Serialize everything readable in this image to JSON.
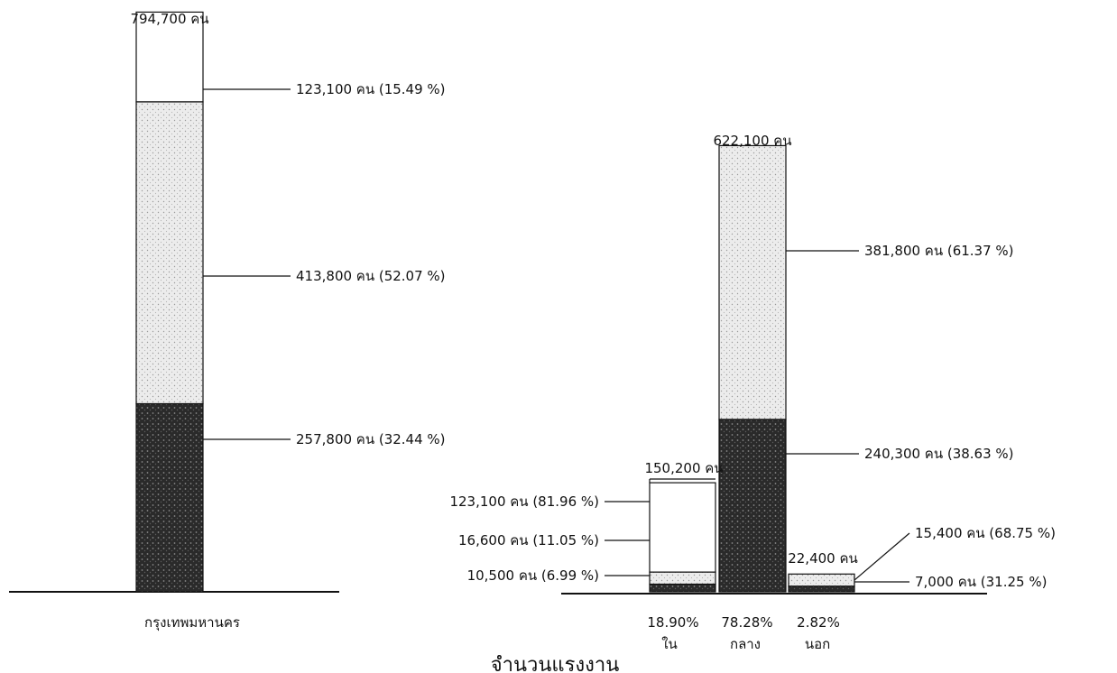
{
  "chart_data": {
    "type": "bar",
    "title": "จำนวนแรงงาน",
    "bars": [
      {
        "id": "bkk",
        "category": "กรุงเทพมหานคร",
        "total": 794700,
        "total_label": "794,700 คน",
        "segments": [
          {
            "value": 123100,
            "label": "123,100 คน (15.49 %)",
            "fill": "white"
          },
          {
            "value": 413800,
            "label": "413,800 คน (52.07 %)",
            "fill": "light"
          },
          {
            "value": 257800,
            "label": "257,800 คน (32.44 %)",
            "fill": "dark"
          }
        ]
      },
      {
        "id": "inner",
        "category": "ใน",
        "share": "18.90%",
        "total": 150200,
        "total_label": "150,200 คน",
        "segments": [
          {
            "value": 123100,
            "label": "123,100 คน (81.96 %)",
            "fill": "white"
          },
          {
            "value": 16600,
            "label": "16,600 คน (11.05 %)",
            "fill": "light"
          },
          {
            "value": 10500,
            "label": "10,500 คน (6.99 %)",
            "fill": "dark"
          }
        ]
      },
      {
        "id": "middle",
        "category": "กลาง",
        "share": "78.28%",
        "total": 622100,
        "total_label": "622,100 คน",
        "segments": [
          {
            "value": 381800,
            "label": "381,800 คน (61.37 %)",
            "fill": "light"
          },
          {
            "value": 240300,
            "label": "240,300 คน (38.63 %)",
            "fill": "dark"
          }
        ]
      },
      {
        "id": "outer",
        "category": "นอก",
        "share": "2.82%",
        "total": 22400,
        "total_label": "22,400 คน",
        "segments": [
          {
            "value": 15400,
            "label": "15,400 คน (68.75 %)",
            "fill": "light"
          },
          {
            "value": 7000,
            "label": "7,000 คน (31.25 %)",
            "fill": "dark"
          }
        ]
      }
    ]
  },
  "colors": {
    "white": "#ffffff",
    "light": "#e9e9e9",
    "dark": "#2e2e2e",
    "line": "#111111"
  }
}
